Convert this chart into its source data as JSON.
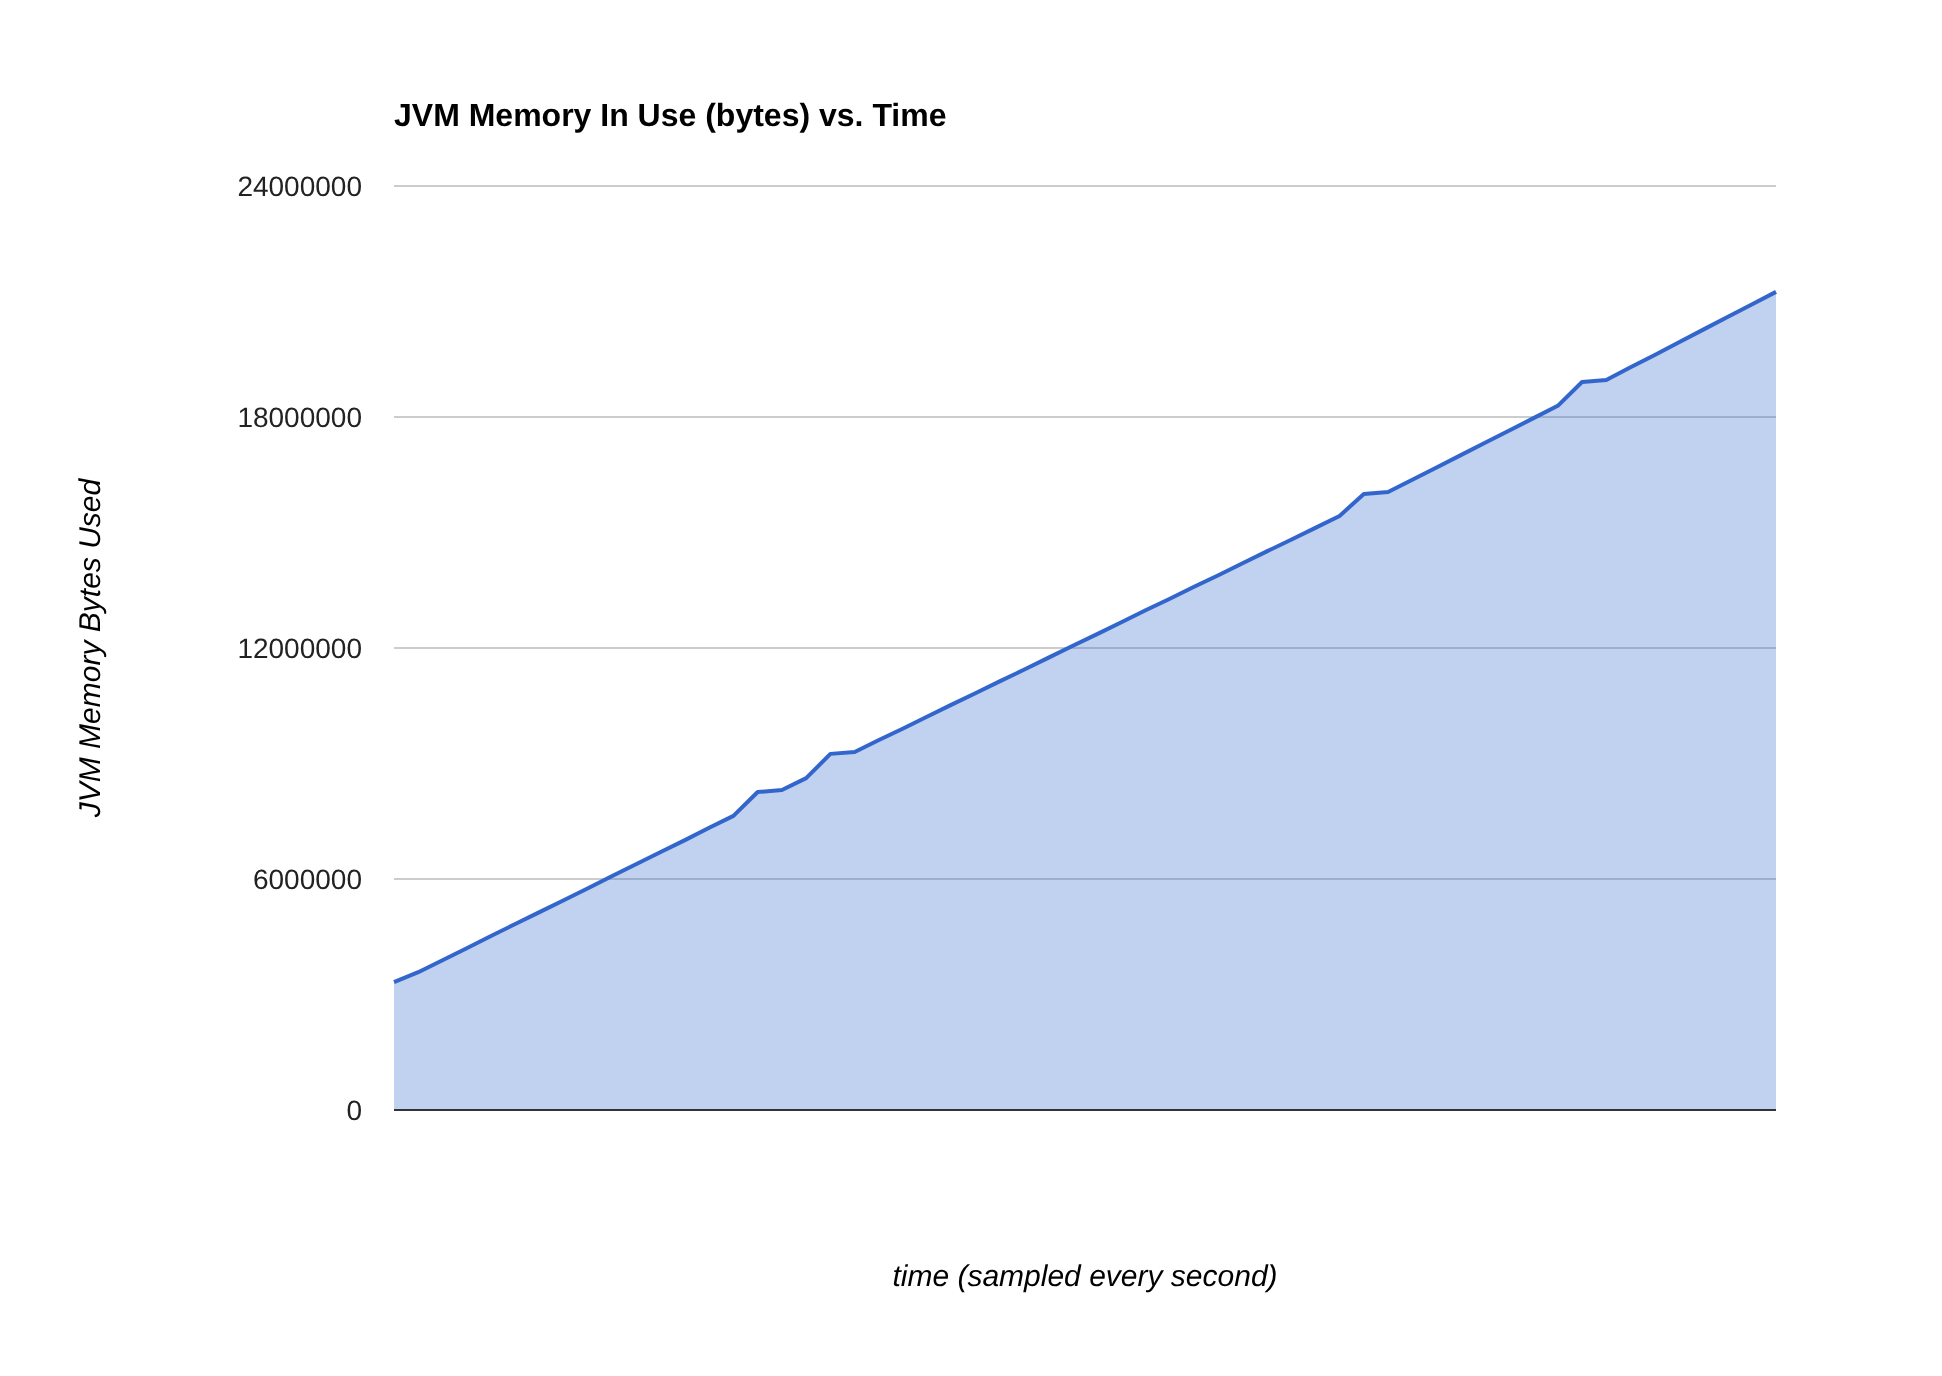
{
  "chart_data": {
    "type": "area",
    "title": "JVM Memory In Use (bytes) vs. Time",
    "xlabel": "time (sampled every second)",
    "ylabel": "JVM Memory Bytes Used",
    "categories": [
      null,
      null,
      null,
      null,
      null,
      null,
      null,
      null,
      null,
      null,
      null,
      null,
      null,
      null,
      null,
      null,
      null,
      null,
      null,
      null,
      null,
      null,
      null,
      null,
      null,
      null,
      null,
      null,
      null,
      null,
      null,
      null,
      null,
      null,
      null,
      null,
      null,
      null,
      null,
      null,
      null,
      null,
      null,
      null,
      null,
      null,
      null,
      null,
      null,
      null,
      null,
      null,
      null,
      null,
      null,
      null,
      null,
      null
    ],
    "series": [
      {
        "color": "#3366cc",
        "values": [
          3320000,
          3580000,
          3890000,
          4200000,
          4520000,
          4830000,
          5140000,
          5450000,
          5760000,
          6080000,
          6390000,
          6700000,
          7010000,
          7330000,
          7640000,
          8260000,
          8310000,
          8620000,
          9250000,
          9300000,
          9610000,
          9910000,
          10220000,
          10530000,
          10830000,
          11140000,
          11440000,
          11750000,
          12060000,
          12360000,
          12670000,
          12980000,
          13280000,
          13590000,
          13890000,
          14200000,
          14510000,
          14810000,
          15120000,
          15430000,
          16000000,
          16050000,
          16370000,
          16690000,
          17010000,
          17330000,
          17650000,
          17970000,
          18290000,
          18910000,
          18960000,
          19290000,
          19610000,
          19940000,
          20270000,
          20600000,
          20920000,
          21250000
        ]
      }
    ],
    "ylim": [
      0,
      24000000
    ],
    "yticks": [
      0,
      6000000,
      12000000,
      18000000,
      24000000
    ],
    "grid": "y"
  }
}
